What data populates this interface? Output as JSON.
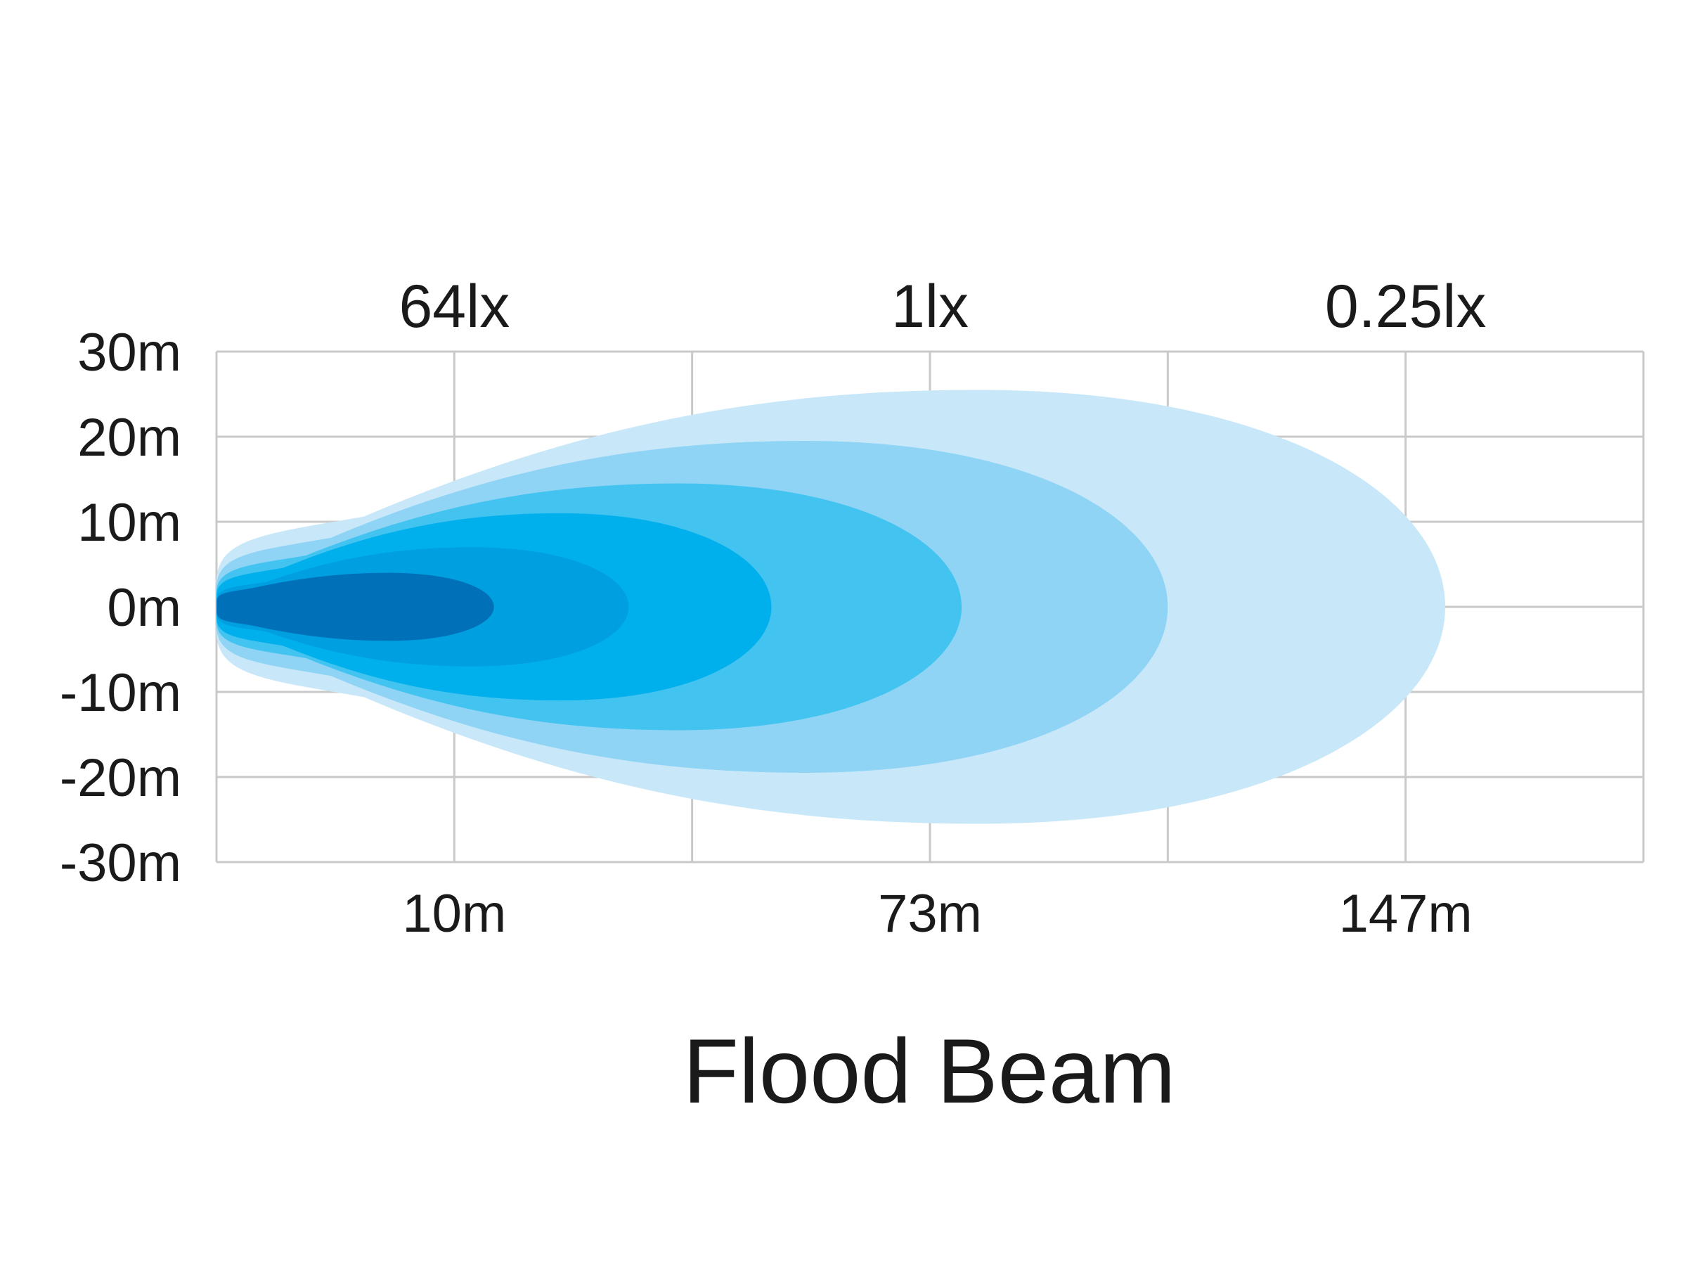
{
  "chart_data": {
    "type": "area",
    "title": "Flood Beam",
    "xlabel": "",
    "ylabel": "",
    "xlim": [
      0,
      180
    ],
    "ylim": [
      -30,
      30
    ],
    "x_grid_divisions": 6,
    "grid": true,
    "y_ticks": [
      {
        "value": 30,
        "label": "30m"
      },
      {
        "value": 20,
        "label": "20m"
      },
      {
        "value": 10,
        "label": "10m"
      },
      {
        "value": 0,
        "label": "0m"
      },
      {
        "value": -10,
        "label": "-10m"
      },
      {
        "value": -20,
        "label": "-20m"
      },
      {
        "value": -30,
        "label": "-30m"
      }
    ],
    "distance_labels": [
      {
        "x": 30,
        "label": "10m"
      },
      {
        "x": 90,
        "label": "73m"
      },
      {
        "x": 150,
        "label": "147m"
      }
    ],
    "lux_labels": [
      {
        "x": 30,
        "label": "64lx"
      },
      {
        "x": 90,
        "label": "1lx"
      },
      {
        "x": 150,
        "label": "0.25lx"
      }
    ],
    "series": [
      {
        "reach": 155,
        "half_width": 25.5,
        "color": "#c8e8f9"
      },
      {
        "reach": 120,
        "half_width": 19.5,
        "color": "#8fd4f5"
      },
      {
        "reach": 94,
        "half_width": 14.5,
        "color": "#43c3f0"
      },
      {
        "reach": 70,
        "half_width": 11,
        "color": "#00b0ec"
      },
      {
        "reach": 52,
        "half_width": 7,
        "color": "#009fe0"
      },
      {
        "reach": 35,
        "half_width": 4,
        "color": "#0071b9"
      }
    ]
  }
}
